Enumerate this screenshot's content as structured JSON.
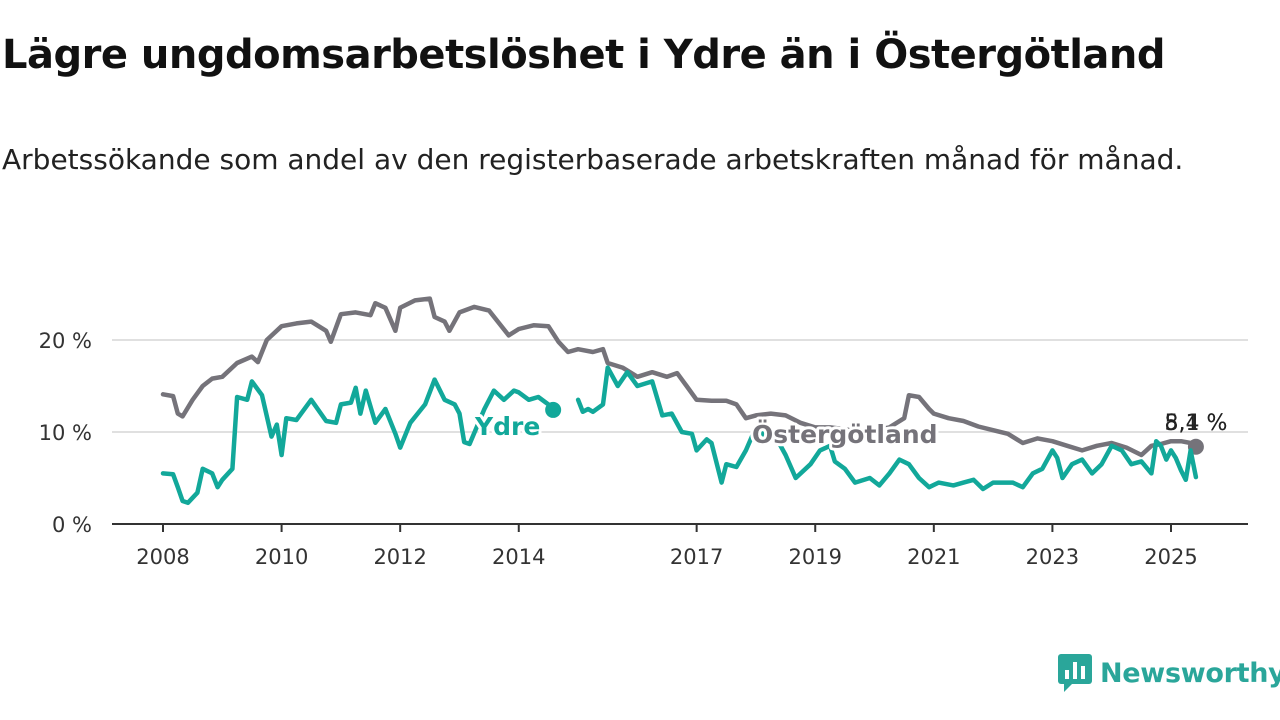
{
  "header": {
    "title": "Lägre ungdomsarbetslöshet i Ydre än i Östergötland",
    "subtitle": "Arbetssökande som andel av den registerbaserade arbetskraften månad för månad."
  },
  "brand": {
    "name": "Newsworthy",
    "icon": "newsworthy-logo-icon",
    "color": "#2aa69a"
  },
  "chart_data": {
    "type": "line",
    "x_ticks": [
      "2008",
      "2010",
      "2012",
      "2014",
      "2017",
      "2019",
      "2021",
      "2023",
      "2025"
    ],
    "x_tick_values": [
      2008,
      2010,
      2012,
      2014,
      2017,
      2019,
      2021,
      2023,
      2025
    ],
    "y_ticks": [
      "0 %",
      "10 %",
      "20 %"
    ],
    "y_tick_values": [
      0,
      10,
      20
    ],
    "xlim": [
      2008,
      2025.5
    ],
    "ylim": [
      0,
      25
    ],
    "grid": "horizontal",
    "series": [
      {
        "name": "Östergötland",
        "color": "#75737a",
        "end_label": "8,4 %",
        "points": [
          [
            2008.0,
            14.1
          ],
          [
            2008.17,
            13.9
          ],
          [
            2008.25,
            12.0
          ],
          [
            2008.33,
            11.7
          ],
          [
            2008.5,
            13.5
          ],
          [
            2008.67,
            15.0
          ],
          [
            2008.83,
            15.8
          ],
          [
            2009.0,
            16.0
          ],
          [
            2009.25,
            17.5
          ],
          [
            2009.5,
            18.2
          ],
          [
            2009.6,
            17.6
          ],
          [
            2009.75,
            20.0
          ],
          [
            2010.0,
            21.5
          ],
          [
            2010.25,
            21.8
          ],
          [
            2010.5,
            22.0
          ],
          [
            2010.75,
            21.0
          ],
          [
            2010.83,
            19.8
          ],
          [
            2011.0,
            22.8
          ],
          [
            2011.25,
            23.0
          ],
          [
            2011.5,
            22.7
          ],
          [
            2011.58,
            24.0
          ],
          [
            2011.75,
            23.5
          ],
          [
            2011.92,
            21.0
          ],
          [
            2012.0,
            23.5
          ],
          [
            2012.25,
            24.3
          ],
          [
            2012.5,
            24.5
          ],
          [
            2012.58,
            22.5
          ],
          [
            2012.75,
            22.0
          ],
          [
            2012.83,
            21.0
          ],
          [
            2013.0,
            23.0
          ],
          [
            2013.25,
            23.6
          ],
          [
            2013.5,
            23.2
          ],
          [
            2013.67,
            21.8
          ],
          [
            2013.83,
            20.5
          ],
          [
            2014.0,
            21.2
          ],
          [
            2014.25,
            21.6
          ],
          [
            2014.5,
            21.5
          ],
          [
            2014.67,
            19.8
          ],
          [
            2014.83,
            18.7
          ],
          [
            2015.0,
            19.0
          ],
          [
            2015.25,
            18.7
          ],
          [
            2015.42,
            19.0
          ],
          [
            2015.5,
            17.5
          ],
          [
            2015.75,
            17.0
          ],
          [
            2016.0,
            16.0
          ],
          [
            2016.25,
            16.5
          ],
          [
            2016.5,
            16.0
          ],
          [
            2016.67,
            16.4
          ],
          [
            2016.83,
            15.0
          ],
          [
            2017.0,
            13.5
          ],
          [
            2017.25,
            13.4
          ],
          [
            2017.5,
            13.4
          ],
          [
            2017.67,
            13.0
          ],
          [
            2017.83,
            11.5
          ],
          [
            2018.0,
            11.8
          ],
          [
            2018.25,
            12.0
          ],
          [
            2018.5,
            11.8
          ],
          [
            2018.75,
            11.0
          ],
          [
            2019.0,
            10.5
          ],
          [
            2019.25,
            10.5
          ],
          [
            2019.5,
            10.3
          ],
          [
            2019.75,
            10.0
          ],
          [
            2020.0,
            10.2
          ],
          [
            2020.25,
            10.5
          ],
          [
            2020.5,
            11.5
          ],
          [
            2020.58,
            14.0
          ],
          [
            2020.75,
            13.8
          ],
          [
            2020.92,
            12.5
          ],
          [
            2021.0,
            12.0
          ],
          [
            2021.25,
            11.5
          ],
          [
            2021.5,
            11.2
          ],
          [
            2021.75,
            10.6
          ],
          [
            2022.0,
            10.2
          ],
          [
            2022.25,
            9.8
          ],
          [
            2022.5,
            8.8
          ],
          [
            2022.75,
            9.3
          ],
          [
            2023.0,
            9.0
          ],
          [
            2023.25,
            8.5
          ],
          [
            2023.5,
            8.0
          ],
          [
            2023.75,
            8.5
          ],
          [
            2024.0,
            8.8
          ],
          [
            2024.25,
            8.3
          ],
          [
            2024.5,
            7.5
          ],
          [
            2024.67,
            8.5
          ],
          [
            2024.83,
            8.7
          ],
          [
            2025.0,
            9.0
          ],
          [
            2025.17,
            9.0
          ],
          [
            2025.33,
            8.8
          ],
          [
            2025.42,
            8.4
          ]
        ]
      },
      {
        "name": "Ydre",
        "color": "#12a89a",
        "end_label": "5,1 %",
        "points": [
          [
            2008.0,
            5.5
          ],
          [
            2008.17,
            5.4
          ],
          [
            2008.25,
            4.0
          ],
          [
            2008.33,
            2.5
          ],
          [
            2008.42,
            2.3
          ],
          [
            2008.58,
            3.4
          ],
          [
            2008.67,
            6.0
          ],
          [
            2008.83,
            5.5
          ],
          [
            2008.92,
            4.0
          ],
          [
            2009.0,
            4.8
          ],
          [
            2009.17,
            6.0
          ],
          [
            2009.25,
            13.8
          ],
          [
            2009.42,
            13.5
          ],
          [
            2009.5,
            15.5
          ],
          [
            2009.67,
            14.0
          ],
          [
            2009.83,
            9.5
          ],
          [
            2009.92,
            10.8
          ],
          [
            2010.0,
            7.5
          ],
          [
            2010.08,
            11.5
          ],
          [
            2010.25,
            11.3
          ],
          [
            2010.5,
            13.5
          ],
          [
            2010.75,
            11.2
          ],
          [
            2010.92,
            11.0
          ],
          [
            2011.0,
            13.0
          ],
          [
            2011.17,
            13.2
          ],
          [
            2011.25,
            14.8
          ],
          [
            2011.33,
            12.0
          ],
          [
            2011.42,
            14.5
          ],
          [
            2011.58,
            11.0
          ],
          [
            2011.75,
            12.5
          ],
          [
            2011.92,
            9.8
          ],
          [
            2012.0,
            8.3
          ],
          [
            2012.17,
            11.0
          ],
          [
            2012.42,
            13.0
          ],
          [
            2012.58,
            15.7
          ],
          [
            2012.75,
            13.5
          ],
          [
            2012.92,
            13.0
          ],
          [
            2013.0,
            12.0
          ],
          [
            2013.08,
            8.9
          ],
          [
            2013.17,
            8.7
          ],
          [
            2013.42,
            12.5
          ],
          [
            2013.58,
            14.5
          ],
          [
            2013.75,
            13.5
          ],
          [
            2013.92,
            14.5
          ],
          [
            2014.0,
            14.3
          ],
          [
            2014.17,
            13.5
          ],
          [
            2014.33,
            13.8
          ],
          [
            2014.5,
            13.0
          ],
          [
            2014.58,
            12.4
          ]
        ]
      },
      {
        "name": "Ydre",
        "color": "#12a89a",
        "points": [
          [
            2015.0,
            13.5
          ],
          [
            2015.08,
            12.2
          ],
          [
            2015.17,
            12.5
          ],
          [
            2015.25,
            12.2
          ],
          [
            2015.42,
            13.0
          ],
          [
            2015.5,
            17.0
          ],
          [
            2015.67,
            15.0
          ],
          [
            2015.83,
            16.5
          ],
          [
            2016.0,
            15.0
          ],
          [
            2016.25,
            15.5
          ],
          [
            2016.42,
            11.8
          ],
          [
            2016.58,
            12.0
          ],
          [
            2016.75,
            10.0
          ],
          [
            2016.92,
            9.8
          ],
          [
            2017.0,
            8.0
          ],
          [
            2017.17,
            9.2
          ],
          [
            2017.25,
            8.8
          ],
          [
            2017.42,
            4.5
          ],
          [
            2017.5,
            6.5
          ],
          [
            2017.67,
            6.2
          ],
          [
            2017.83,
            8.0
          ],
          [
            2018.0,
            10.5
          ],
          [
            2018.17,
            9.5
          ],
          [
            2018.33,
            9.5
          ],
          [
            2018.5,
            7.5
          ],
          [
            2018.67,
            5.0
          ],
          [
            2018.92,
            6.5
          ],
          [
            2019.08,
            8.0
          ],
          [
            2019.25,
            8.5
          ],
          [
            2019.33,
            6.8
          ],
          [
            2019.5,
            6.0
          ],
          [
            2019.67,
            4.5
          ],
          [
            2019.92,
            5.0
          ],
          [
            2020.08,
            4.2
          ],
          [
            2020.25,
            5.5
          ],
          [
            2020.42,
            7.0
          ],
          [
            2020.58,
            6.5
          ],
          [
            2020.75,
            5.0
          ],
          [
            2020.92,
            4.0
          ],
          [
            2021.08,
            4.5
          ],
          [
            2021.33,
            4.2
          ],
          [
            2021.5,
            4.5
          ],
          [
            2021.67,
            4.8
          ],
          [
            2021.83,
            3.8
          ],
          [
            2022.0,
            4.5
          ],
          [
            2022.17,
            4.5
          ],
          [
            2022.33,
            4.5
          ],
          [
            2022.5,
            4.0
          ],
          [
            2022.67,
            5.5
          ],
          [
            2022.83,
            6.0
          ],
          [
            2023.0,
            8.0
          ],
          [
            2023.08,
            7.2
          ],
          [
            2023.17,
            5.0
          ],
          [
            2023.33,
            6.5
          ],
          [
            2023.5,
            7.0
          ],
          [
            2023.67,
            5.5
          ],
          [
            2023.83,
            6.5
          ],
          [
            2024.0,
            8.5
          ],
          [
            2024.17,
            8.0
          ],
          [
            2024.33,
            6.5
          ],
          [
            2024.5,
            6.8
          ],
          [
            2024.67,
            5.5
          ],
          [
            2024.75,
            9.0
          ],
          [
            2024.83,
            8.5
          ],
          [
            2024.92,
            7.0
          ],
          [
            2025.0,
            8.0
          ],
          [
            2025.08,
            7.2
          ],
          [
            2025.17,
            5.8
          ],
          [
            2025.25,
            4.8
          ],
          [
            2025.33,
            8.0
          ],
          [
            2025.42,
            5.1
          ]
        ]
      }
    ]
  }
}
